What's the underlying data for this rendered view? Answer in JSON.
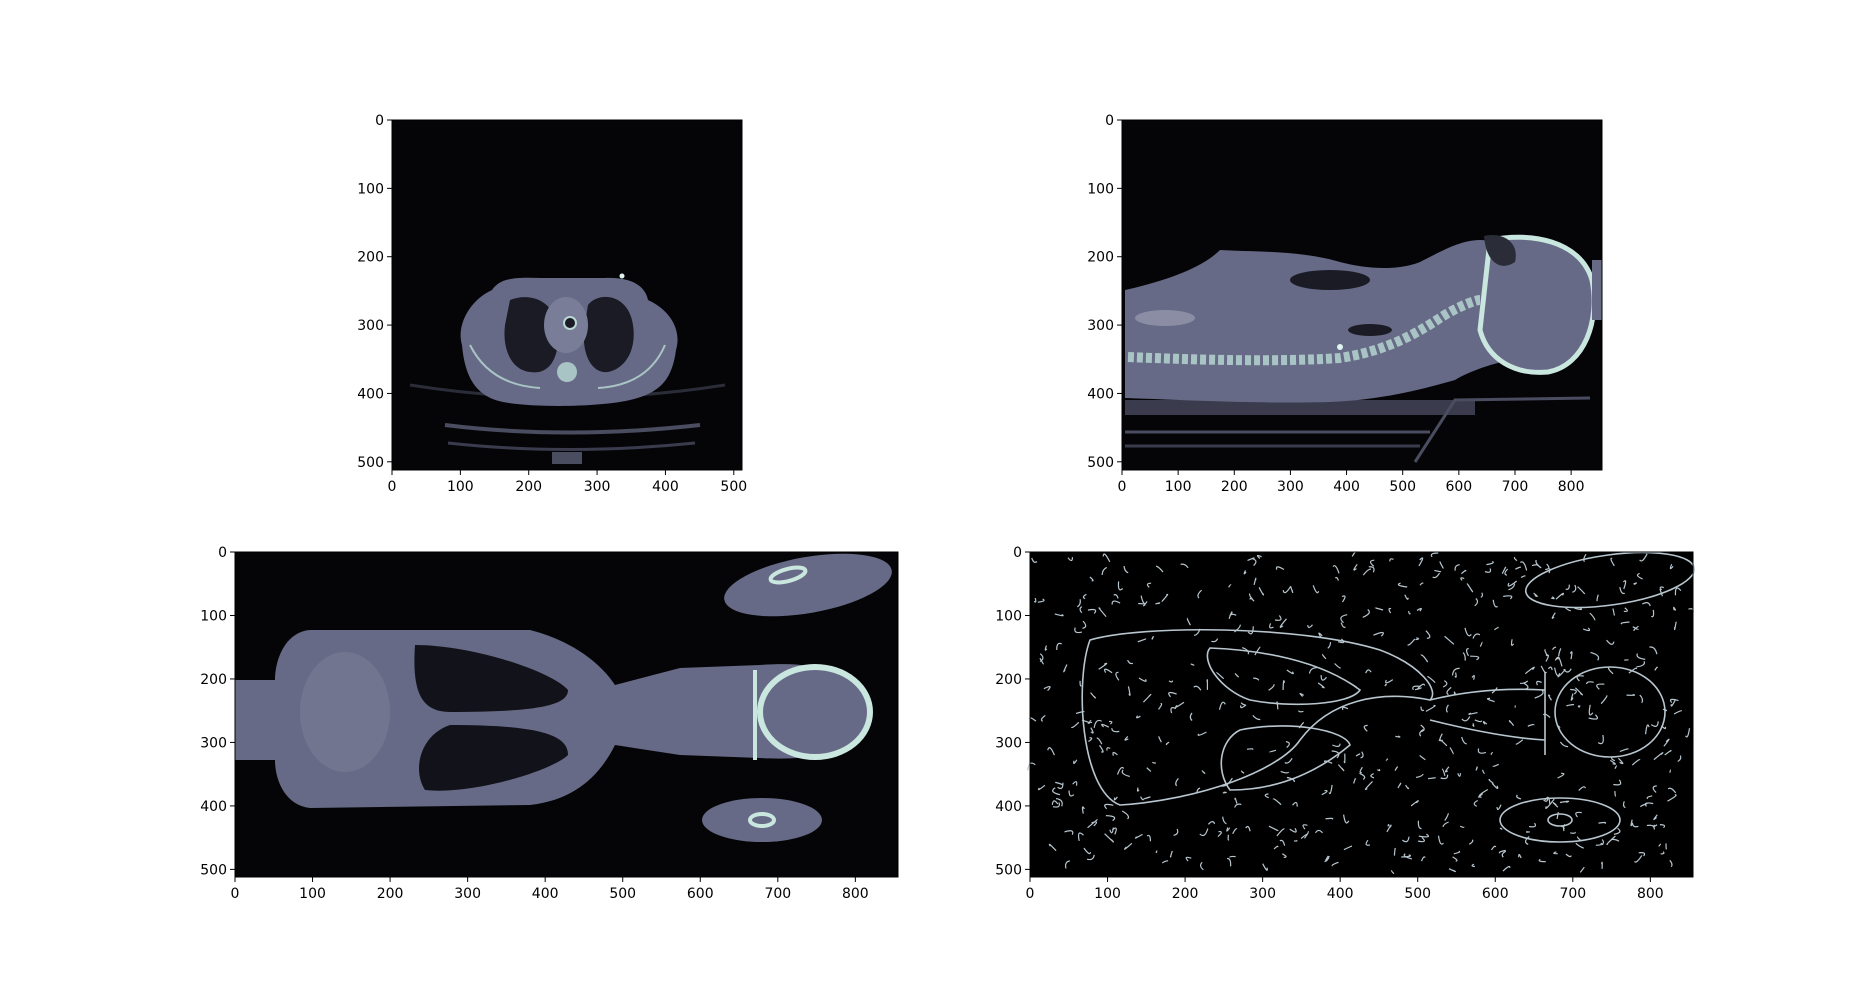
{
  "figure": {
    "background": "#ffffff",
    "image_frame_color": "#000000",
    "tissue_color": "#6a6c86",
    "bone_color": "#c9e6df",
    "edge_color": "#b8c6cf"
  },
  "panels": [
    {
      "id": "axial",
      "view": "axial CT slice (chest)",
      "x_ticks": [
        "0",
        "100",
        "200",
        "300",
        "400",
        "500"
      ],
      "y_ticks": [
        "0",
        "100",
        "200",
        "300",
        "400",
        "500"
      ],
      "x_range": [
        0,
        512
      ],
      "y_range": [
        0,
        512
      ]
    },
    {
      "id": "sagittal",
      "view": "sagittal CT slice (spine / skull)",
      "x_ticks": [
        "0",
        "100",
        "200",
        "300",
        "400",
        "500",
        "600",
        "700",
        "800"
      ],
      "y_ticks": [
        "0",
        "100",
        "200",
        "300",
        "400",
        "500"
      ],
      "x_range": [
        0,
        855
      ],
      "y_range": [
        0,
        512
      ]
    },
    {
      "id": "coronal",
      "view": "coronal CT slice (torso / head)",
      "x_ticks": [
        "0",
        "100",
        "200",
        "300",
        "400",
        "500",
        "600",
        "700",
        "800"
      ],
      "y_ticks": [
        "0",
        "100",
        "200",
        "300",
        "400",
        "500"
      ],
      "x_range": [
        0,
        855
      ],
      "y_range": [
        0,
        512
      ]
    },
    {
      "id": "edges",
      "view": "edge-detection map of coronal slice",
      "x_ticks": [
        "0",
        "100",
        "200",
        "300",
        "400",
        "500",
        "600",
        "700",
        "800"
      ],
      "y_ticks": [
        "0",
        "100",
        "200",
        "300",
        "400",
        "500"
      ],
      "x_range": [
        0,
        855
      ],
      "y_range": [
        0,
        512
      ]
    }
  ]
}
